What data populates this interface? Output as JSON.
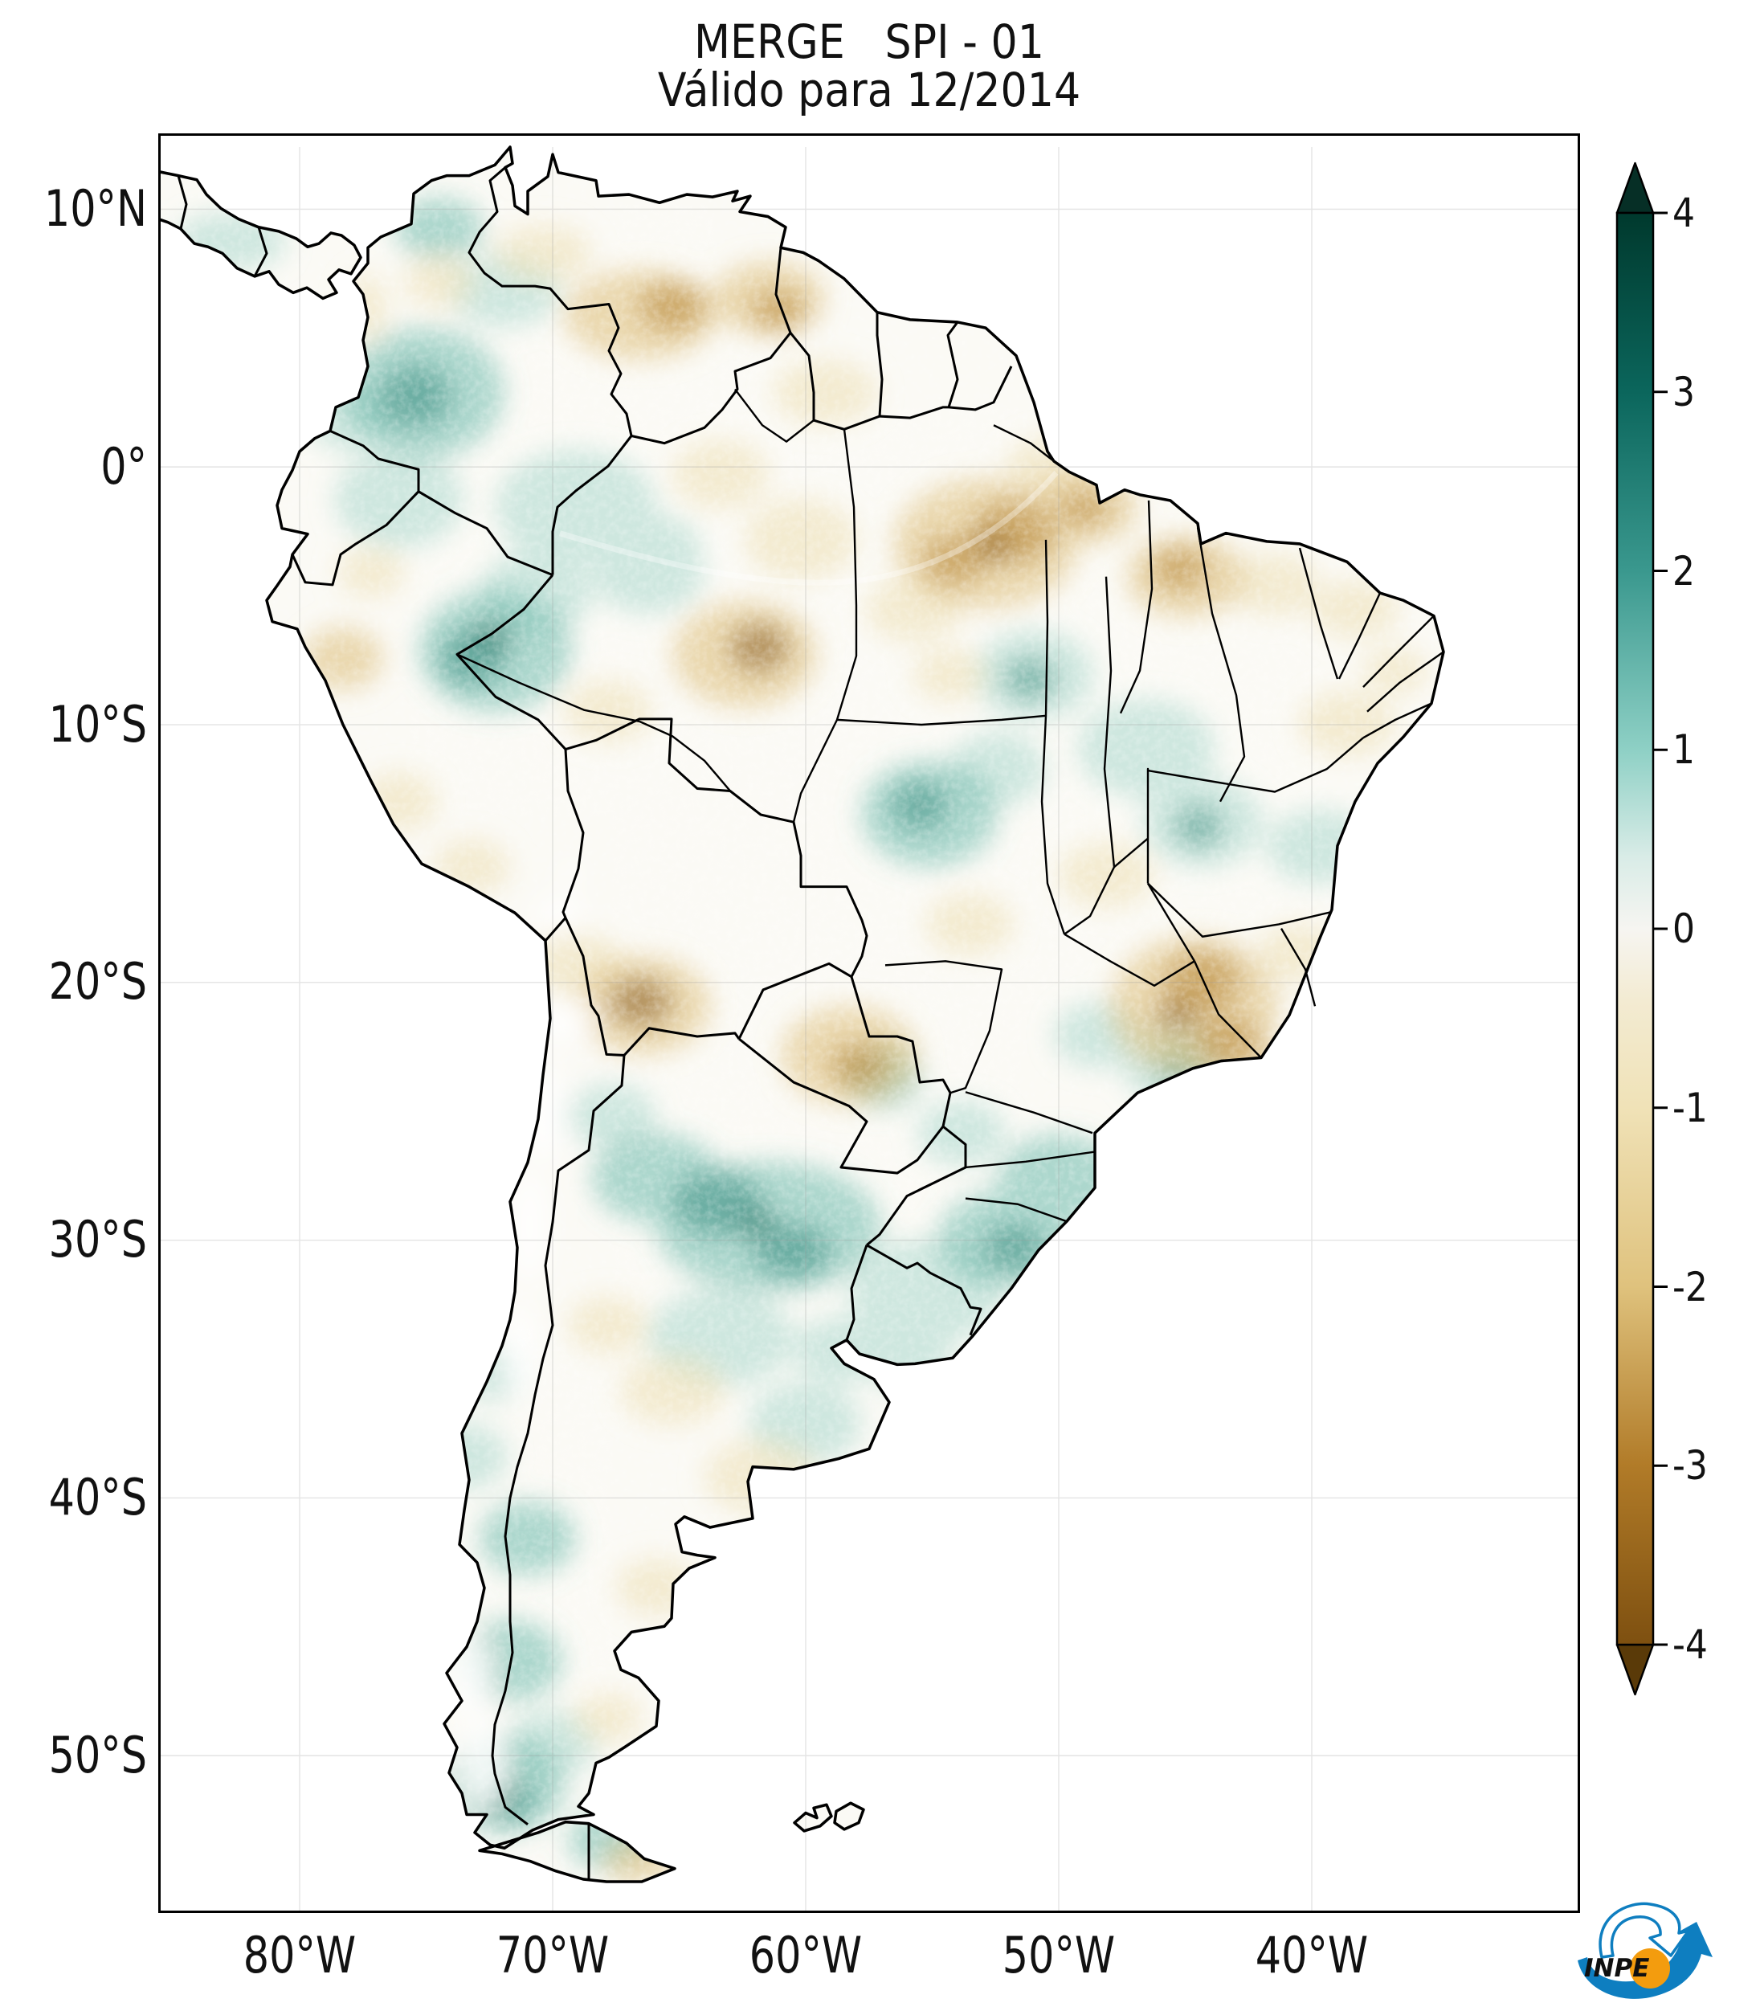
{
  "title": {
    "line1": "MERGE   SPI - 01",
    "line2": "Válido para 12/2014"
  },
  "axes": {
    "lat_ticks": [
      "10°N",
      "0°",
      "10°S",
      "20°S",
      "30°S",
      "40°S",
      "50°S"
    ],
    "lon_ticks": [
      "80°W",
      "70°W",
      "60°W",
      "50°W",
      "40°W"
    ]
  },
  "colorbar": {
    "tick_labels": [
      "4",
      "3",
      "2",
      "1",
      "0",
      "-1",
      "-2",
      "-3",
      "-4"
    ],
    "min": -4,
    "max": 4,
    "extend": "both",
    "colormap": "BrBG (brown = dry, white = neutral, teal = wet)",
    "colors": [
      "#00392d",
      "#0b665c",
      "#3a988e",
      "#8ed0c5",
      "#f6f5f1",
      "#f0e2b7",
      "#dfc27d",
      "#b17b28",
      "#7e5010"
    ]
  },
  "logo": {
    "text": "INPE",
    "blue": "#0e7ec0",
    "orange": "#f39c0e"
  },
  "chart_data": {
    "type": "heatmap",
    "subtype": "geospatial raster map (filled lat/lon grid over South America)",
    "title": "MERGE   SPI - 01",
    "subtitle": "Válido para 12/2014",
    "variable": "SPI (Standardized Precipitation Index), 1 month, from MERGE precipitation",
    "region": "South America",
    "projection": "equirectangular lat/lon",
    "lon_range_deg_w": [
      86,
      29
    ],
    "lat_range_deg": [
      13,
      -56
    ],
    "xlabel_ticks": [
      "80°W",
      "70°W",
      "60°W",
      "50°W",
      "40°W"
    ],
    "ylabel_ticks": [
      "10°N",
      "0°",
      "10°S",
      "20°S",
      "30°S",
      "40°S",
      "50°S"
    ],
    "grid": "faint graticule every 10 degrees",
    "legend_position": "vertical colorbar right, range -4 to 4, pointed extensions both ends",
    "boundaries": "country borders + Brazilian state borders in black",
    "notable_anomalies": [
      {
        "area": "Lower Amazon / Pará–Amapá (Brazil)",
        "spi": -2.5
      },
      {
        "area": "Central Amazonas (Brazil)",
        "spi": -2.0
      },
      {
        "area": "Central and eastern Venezuela / Guyana border",
        "spi": -1.5
      },
      {
        "area": "Maranhão / Piauí (NE Brazil)",
        "spi": -1.5
      },
      {
        "area": "Minas Gerais / SE Brazil",
        "spi": -2.5
      },
      {
        "area": "SE Bolivia – Paraguay (Chaco)",
        "spi": -2.5
      },
      {
        "area": "Central Colombia",
        "spi": 1.5
      },
      {
        "area": "Peru–Brazil border (Ucayali / Acre)",
        "spi": 2.0
      },
      {
        "area": "Mato Grosso (Brazil)",
        "spi": 1.0
      },
      {
        "area": "Northern Argentina (Santiago del Estero – Santa Fe)",
        "spi": 2.0
      },
      {
        "area": "Rio Grande do Sul / Santa Catarina (S Brazil)",
        "spi": 1.5
      },
      {
        "area": "Patagonian Andes (Chile / Argentina)",
        "spi": 1.5
      },
      {
        "area": "Buenos Aires – La Pampa (Argentina)",
        "spi": -0.5
      }
    ]
  }
}
